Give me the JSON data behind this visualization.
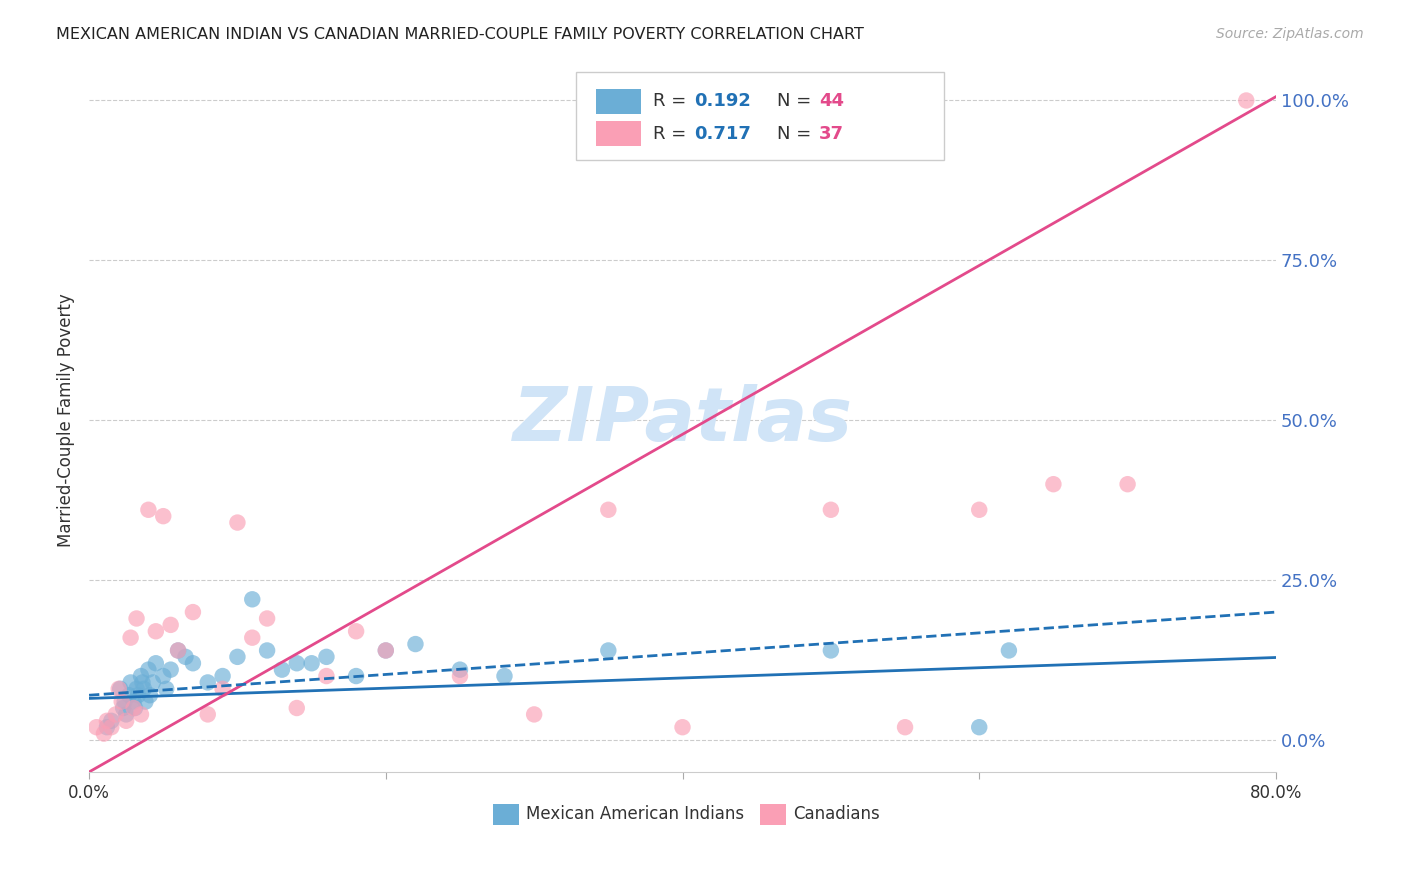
{
  "title": "MEXICAN AMERICAN INDIAN VS CANADIAN MARRIED-COUPLE FAMILY POVERTY CORRELATION CHART",
  "source": "Source: ZipAtlas.com",
  "ylabel": "Married-Couple Family Poverty",
  "ytick_values": [
    0,
    25,
    50,
    75,
    100
  ],
  "xlim": [
    0,
    80
  ],
  "ylim": [
    -5,
    105
  ],
  "blue_R": 0.192,
  "blue_N": 44,
  "pink_R": 0.717,
  "pink_N": 37,
  "blue_color": "#6baed6",
  "pink_color": "#fa9fb5",
  "blue_line_color": "#2171b5",
  "pink_line_color": "#e34a8b",
  "watermark_color": "#d0e4f7",
  "blue_scatter_x": [
    1.2,
    1.5,
    2.1,
    2.3,
    2.4,
    2.5,
    2.7,
    2.8,
    3.0,
    3.1,
    3.2,
    3.3,
    3.5,
    3.6,
    3.7,
    3.8,
    4.0,
    4.1,
    4.3,
    4.5,
    5.0,
    5.2,
    5.5,
    6.0,
    6.5,
    7.0,
    8.0,
    9.0,
    10.0,
    11.0,
    12.0,
    13.0,
    14.0,
    15.0,
    16.0,
    18.0,
    20.0,
    22.0,
    25.0,
    28.0,
    35.0,
    50.0,
    60.0,
    62.0
  ],
  "blue_scatter_y": [
    2,
    3,
    8,
    5,
    6,
    4,
    7,
    9,
    6,
    5,
    8,
    7,
    10,
    9,
    8,
    6,
    11,
    7,
    9,
    12,
    10,
    8,
    11,
    14,
    13,
    12,
    9,
    10,
    13,
    22,
    14,
    11,
    12,
    12,
    13,
    10,
    14,
    15,
    11,
    10,
    14,
    14,
    2,
    14
  ],
  "pink_scatter_x": [
    0.5,
    1.0,
    1.2,
    1.5,
    1.8,
    2.0,
    2.2,
    2.5,
    2.8,
    3.0,
    3.2,
    3.5,
    4.0,
    4.5,
    5.0,
    5.5,
    6.0,
    7.0,
    8.0,
    9.0,
    10.0,
    11.0,
    12.0,
    14.0,
    16.0,
    18.0,
    20.0,
    25.0,
    30.0,
    35.0,
    40.0,
    50.0,
    55.0,
    60.0,
    65.0,
    70.0,
    78.0
  ],
  "pink_scatter_y": [
    2,
    1,
    3,
    2,
    4,
    8,
    6,
    3,
    16,
    5,
    19,
    4,
    36,
    17,
    35,
    18,
    14,
    20,
    4,
    8,
    34,
    16,
    19,
    5,
    10,
    17,
    14,
    10,
    4,
    36,
    2,
    36,
    2,
    36,
    40,
    40,
    100
  ],
  "blue_trend_y_intercept": 6.5,
  "blue_trend_slope": 0.08,
  "pink_trend_y_intercept": -5,
  "pink_trend_slope": 1.32,
  "blue_dashed_y_start": 7,
  "blue_dashed_y_end": 20
}
